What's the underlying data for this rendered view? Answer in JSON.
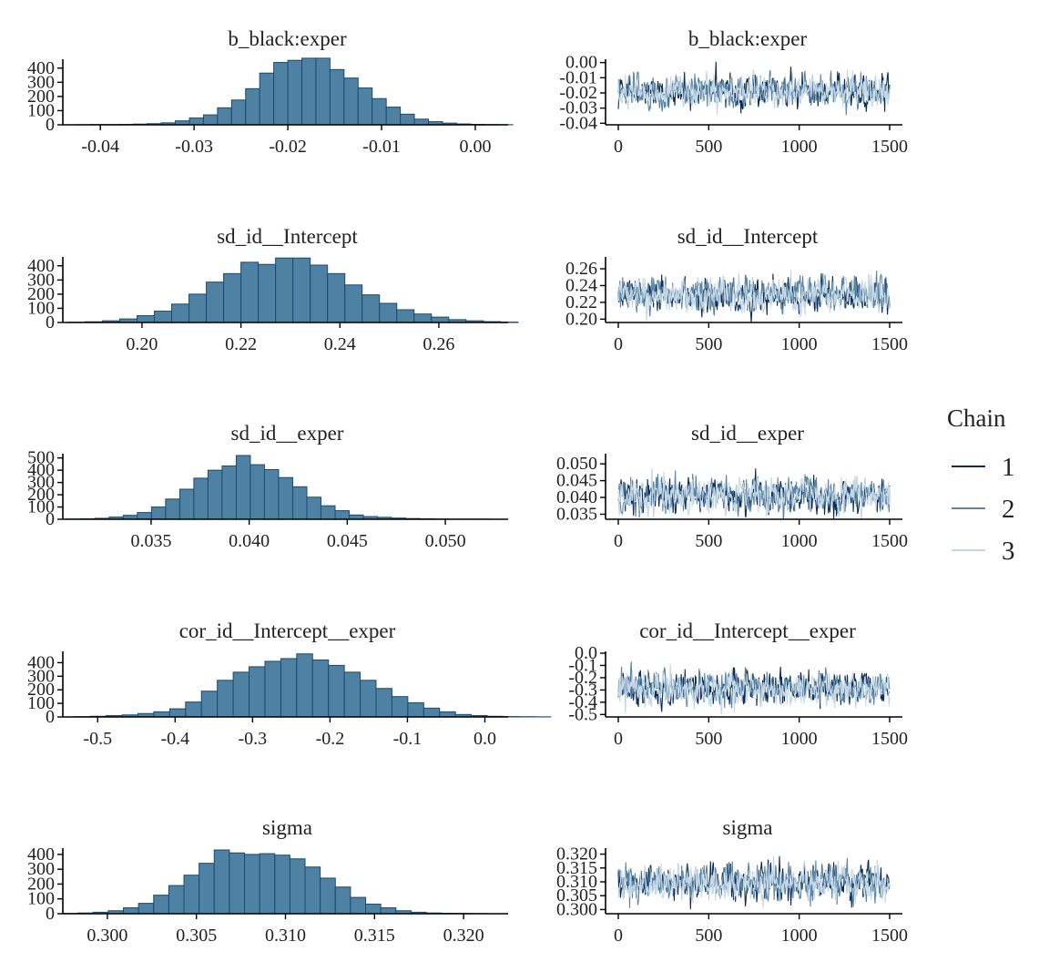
{
  "colors": {
    "hist_fill": "#4f81a3",
    "hist_stroke": "#1b4a72",
    "chain1": "#0c2d57",
    "chain2": "#5b86a6",
    "chain3": "#c3d7e6"
  },
  "legend": {
    "title": "Chain",
    "items": [
      "1",
      "2",
      "3"
    ]
  },
  "trace_x": {
    "ticks": [
      0,
      500,
      1000,
      1500
    ],
    "labels": [
      "0",
      "500",
      "1000",
      "1500"
    ],
    "xlim": [
      0,
      1500
    ]
  },
  "chart_data": [
    {
      "type": "bar",
      "panel": "histogram",
      "title": "b_black:exper",
      "bin_start": -0.0425,
      "bin_width": 0.0015,
      "xlim": [
        -0.044,
        0.0035
      ],
      "ylim": [
        0,
        450
      ],
      "values": [
        1,
        2,
        2,
        3,
        5,
        8,
        14,
        28,
        48,
        70,
        120,
        175,
        255,
        365,
        440,
        455,
        470,
        470,
        390,
        330,
        260,
        185,
        125,
        75,
        40,
        22,
        12,
        6,
        3,
        2,
        1
      ],
      "xticks": [
        -0.04,
        -0.03,
        -0.02,
        -0.01,
        0.0
      ],
      "xtick_labels": [
        "-0.04",
        "-0.03",
        "-0.02",
        "-0.01",
        "0.00"
      ],
      "yticks": [
        0,
        100,
        200,
        300,
        400
      ],
      "ytick_labels": [
        "0",
        "100",
        "200",
        "300",
        "400"
      ]
    },
    {
      "type": "line",
      "panel": "trace",
      "title": "b_black:exper",
      "ylim": [
        -0.041,
        0.001
      ],
      "center": -0.019,
      "spread": 0.005,
      "yticks": [
        0.0,
        -0.01,
        -0.02,
        -0.03,
        -0.04
      ],
      "ytick_labels": [
        "0.00",
        "-0.01",
        "-0.02",
        "-0.03",
        "-0.04"
      ]
    },
    {
      "type": "bar",
      "panel": "histogram",
      "title": "sd_id__Intercept",
      "bin_start": 0.185,
      "bin_width": 0.0035,
      "xlim": [
        0.184,
        0.274
      ],
      "ylim": [
        0,
        450
      ],
      "values": [
        2,
        5,
        12,
        25,
        48,
        80,
        130,
        200,
        285,
        345,
        425,
        410,
        455,
        455,
        405,
        345,
        265,
        195,
        135,
        90,
        60,
        38,
        20,
        12,
        6,
        3
      ],
      "xticks": [
        0.2,
        0.22,
        0.24,
        0.26
      ],
      "xtick_labels": [
        "0.20",
        "0.22",
        "0.24",
        "0.26"
      ],
      "yticks": [
        0,
        100,
        200,
        300,
        400
      ],
      "ytick_labels": [
        "0",
        "100",
        "200",
        "300",
        "400"
      ]
    },
    {
      "type": "line",
      "panel": "trace",
      "title": "sd_id__Intercept",
      "ylim": [
        0.196,
        0.272
      ],
      "center": 0.228,
      "spread": 0.0095,
      "yticks": [
        0.2,
        0.22,
        0.24,
        0.26
      ],
      "ytick_labels": [
        "0.20",
        "0.22",
        "0.24",
        "0.26"
      ]
    },
    {
      "type": "bar",
      "panel": "histogram",
      "title": "sd_id__exper",
      "bin_start": 0.0307,
      "bin_width": 0.00072,
      "xlim": [
        0.0305,
        0.0532
      ],
      "ylim": [
        0,
        520
      ],
      "values": [
        2,
        4,
        8,
        18,
        32,
        55,
        100,
        165,
        245,
        335,
        400,
        435,
        520,
        445,
        405,
        340,
        265,
        180,
        110,
        70,
        35,
        22,
        16,
        10,
        6,
        4,
        2,
        1,
        1,
        1
      ],
      "xticks": [
        0.035,
        0.04,
        0.045,
        0.05
      ],
      "xtick_labels": [
        "0.035",
        "0.040",
        "0.045",
        "0.050"
      ],
      "yticks": [
        0,
        100,
        200,
        300,
        400,
        500
      ],
      "ytick_labels": [
        "0",
        "100",
        "200",
        "300",
        "400",
        "500"
      ]
    },
    {
      "type": "line",
      "panel": "trace",
      "title": "sd_id__exper",
      "ylim": [
        0.0335,
        0.0525
      ],
      "center": 0.0405,
      "spread": 0.0025,
      "yticks": [
        0.035,
        0.04,
        0.045,
        0.05
      ],
      "ytick_labels": [
        "0.035",
        "0.040",
        "0.045",
        "0.050"
      ]
    },
    {
      "type": "bar",
      "panel": "histogram",
      "title": "cor_id__Intercept__exper",
      "bin_start": -0.53,
      "bin_width": 0.0205,
      "xlim": [
        -0.545,
        0.03
      ],
      "ylim": [
        0,
        470
      ],
      "values": [
        2,
        5,
        10,
        15,
        25,
        38,
        60,
        110,
        190,
        270,
        330,
        370,
        410,
        430,
        465,
        420,
        380,
        330,
        270,
        210,
        150,
        105,
        65,
        38,
        18,
        10,
        5,
        3,
        2,
        1
      ],
      "xticks": [
        -0.5,
        -0.4,
        -0.3,
        -0.2,
        -0.1,
        0.0
      ],
      "xtick_labels": [
        "-0.5",
        "-0.4",
        "-0.3",
        "-0.2",
        "-0.1",
        "0.0"
      ],
      "yticks": [
        0,
        100,
        200,
        300,
        400
      ],
      "ytick_labels": [
        "0",
        "100",
        "200",
        "300",
        "400"
      ]
    },
    {
      "type": "line",
      "panel": "trace",
      "title": "cor_id__Intercept__exper",
      "ylim": [
        -0.52,
        0.0
      ],
      "center": -0.29,
      "spread": 0.065,
      "yticks": [
        0.0,
        -0.1,
        -0.2,
        -0.3,
        -0.4,
        -0.5
      ],
      "ytick_labels": [
        "0.0",
        "-0.1",
        "-0.2",
        "-0.3",
        "-0.4",
        "-0.5"
      ]
    },
    {
      "type": "bar",
      "panel": "histogram",
      "title": "sigma",
      "bin_start": 0.2975,
      "bin_width": 0.00085,
      "xlim": [
        0.2975,
        0.3225
      ],
      "ylim": [
        0,
        430
      ],
      "values": [
        2,
        5,
        10,
        20,
        40,
        70,
        125,
        190,
        260,
        340,
        430,
        410,
        400,
        405,
        395,
        370,
        315,
        240,
        180,
        110,
        65,
        40,
        20,
        10,
        5,
        3,
        2,
        1
      ],
      "xticks": [
        0.3,
        0.305,
        0.31,
        0.315,
        0.32
      ],
      "xtick_labels": [
        "0.300",
        "0.305",
        "0.310",
        "0.315",
        "0.320"
      ],
      "yticks": [
        0,
        100,
        200,
        300,
        400
      ],
      "ytick_labels": [
        "0",
        "100",
        "200",
        "300",
        "400"
      ]
    },
    {
      "type": "line",
      "panel": "trace",
      "title": "sigma",
      "ylim": [
        0.2985,
        0.3215
      ],
      "center": 0.3095,
      "spread": 0.0031,
      "yticks": [
        0.3,
        0.305,
        0.31,
        0.315,
        0.32
      ],
      "ytick_labels": [
        "0.300",
        "0.305",
        "0.310",
        "0.315",
        "0.320"
      ]
    }
  ]
}
